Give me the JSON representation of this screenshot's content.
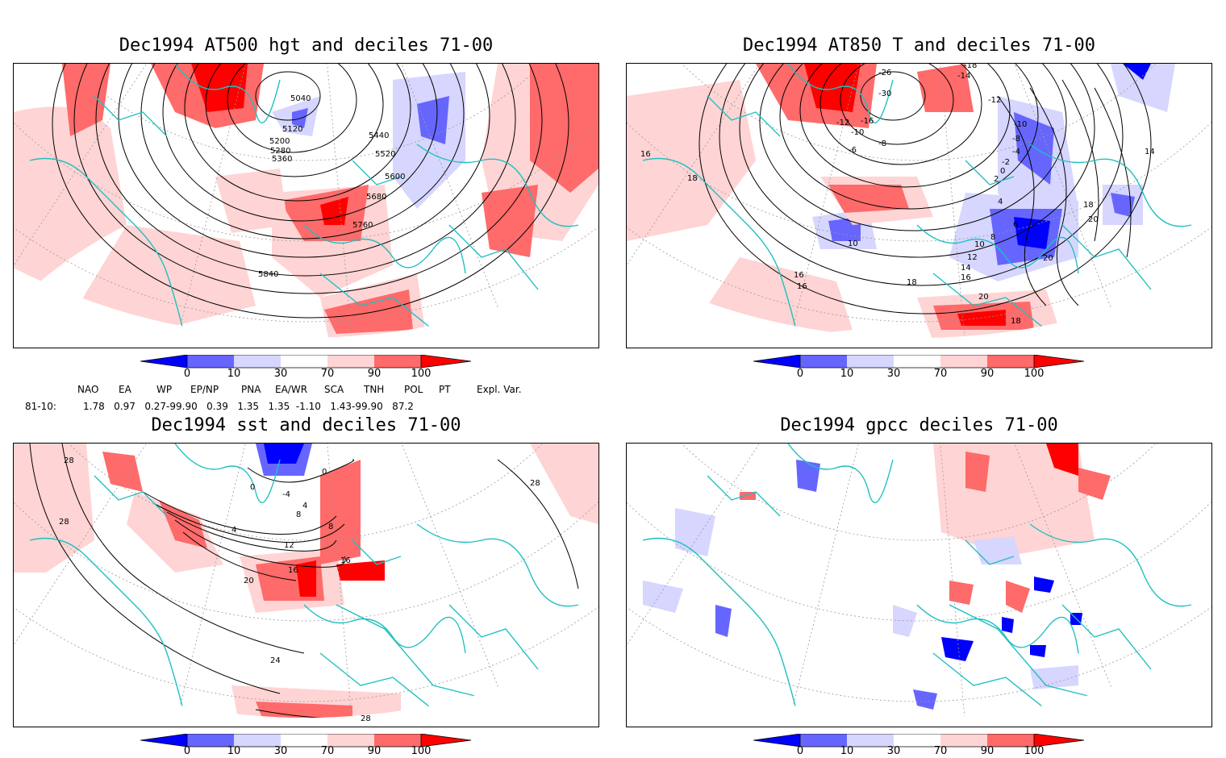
{
  "panels": {
    "hgt": {
      "title": "Dec1994 AT500 hgt and deciles 71-00",
      "contour_labels": [
        "5040",
        "5120",
        "5200",
        "5280",
        "5360",
        "5440",
        "5520",
        "5600",
        "5680",
        "5760",
        "5840"
      ]
    },
    "t850": {
      "title": "Dec1994 AT850 T and deciles 71-00",
      "contour_labels": [
        "-26",
        "-30",
        "-18",
        "-14",
        "-12",
        "-12",
        "-16",
        "-10",
        "-10",
        "-8",
        "-6",
        "-8",
        "-4",
        "-2",
        "0",
        "2",
        "4",
        "6",
        "8",
        "10",
        "10",
        "12",
        "14",
        "16",
        "16",
        "18",
        "18",
        "16",
        "16",
        "18",
        "20",
        "20",
        "14",
        "18",
        "20"
      ]
    },
    "sst": {
      "title": "Dec1994 sst and deciles 71-00",
      "contour_labels": [
        "28",
        "0",
        "-4",
        "4",
        "0",
        "4",
        "8",
        "8",
        "12",
        "16",
        "16",
        "20",
        "24",
        "28",
        "28",
        "28"
      ]
    },
    "gpcc": {
      "title": "Dec1994 gpcc deciles 71-00"
    }
  },
  "colorbar": {
    "ticks": [
      "0",
      "10",
      "30",
      "70",
      "90",
      "100"
    ],
    "colors": [
      "#0000ff",
      "#6666ff",
      "#d6d6ff",
      "#ffffff",
      "#ffd4d4",
      "#ff6a6a",
      "#ff0000"
    ]
  },
  "indices": {
    "headers": [
      "NAO",
      "EA",
      "WP",
      "EP/NP",
      "PNA",
      "EA/WR",
      "SCA",
      "TNH",
      "POL",
      "PT",
      "Expl. Var."
    ],
    "row_label": "81-10:",
    "values": "1.78   0.97   0.27-99.90   0.39   1.35   1.35  -1.10   1.43-99.90   87.2"
  },
  "colors": {
    "coast": "#20c0c0",
    "contour": "#000000",
    "grid": "#999999"
  }
}
